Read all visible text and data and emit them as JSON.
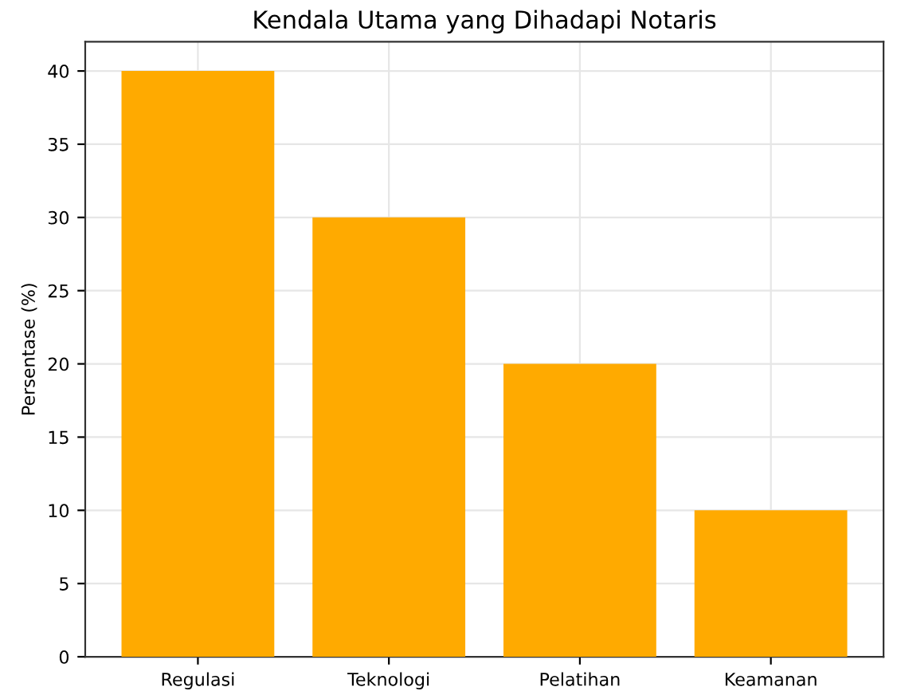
{
  "chart_data": {
    "type": "bar",
    "title": "Kendala Utama yang Dihadapi Notaris",
    "ylabel": "Persentase (%)",
    "categories": [
      "Regulasi",
      "Teknologi",
      "Pelatihan",
      "Keamanan"
    ],
    "values": [
      40,
      30,
      20,
      10
    ],
    "color": "#ffaa00",
    "ylim": [
      0,
      42
    ],
    "yticks": [
      0,
      5,
      10,
      15,
      20,
      25,
      30,
      35,
      40
    ],
    "grid": true
  }
}
